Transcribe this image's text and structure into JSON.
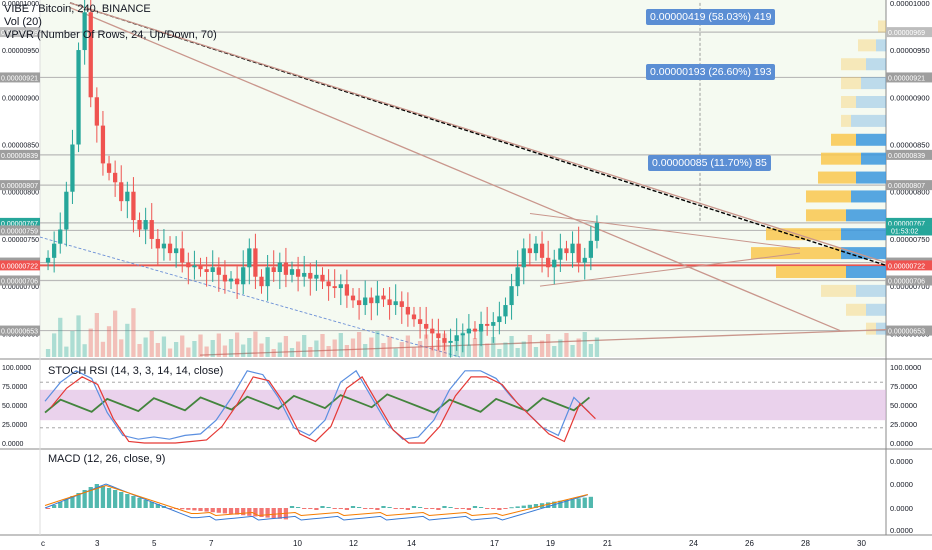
{
  "header": {
    "title": "VIBE / Bitcoin, 240, BINANCE",
    "vol_label": "Vol (20)",
    "vpvr_label": "VPVR (Number Of Rows, 24, Up/Down, 70)"
  },
  "measure_labels": [
    {
      "text": "0.00000419 (58.03%) 419",
      "price": 7.67e-06
    },
    {
      "text": "0.00000193 (26.60%) 193",
      "price": 9.21e-06
    },
    {
      "text": "0.00000085 (11.70%) 85",
      "price": 8.39e-06
    }
  ],
  "countdown": "01:53:02",
  "colors": {
    "up": "#26a69a",
    "down": "#ef5350",
    "stoch_k": "#5b8fe0",
    "stoch_d": "#e53935",
    "stoch_rsi": "#43843d",
    "macd": "#3a7bd5",
    "signal": "#f57c00",
    "bg_green": "#e8f5e1",
    "vp_up": "#f9c74f",
    "vp_down": "#3a96dd"
  },
  "chart_data": {
    "type": "candlestick",
    "title": "VIBE / Bitcoin, 240, BINANCE",
    "x_ticks": [
      "c",
      "3",
      "5",
      "7",
      "10",
      "12",
      "14",
      "17",
      "19",
      "21",
      "24",
      "26",
      "28",
      "30"
    ],
    "y_ticks": [
      "0.00001000",
      "0.00000950",
      "0.00000900",
      "0.00000850",
      "0.00000800",
      "0.00000750",
      "0.00000700",
      "0.00000650"
    ],
    "ylim": [
      6.25e-06,
      1.003e-05
    ],
    "price_badges": [
      {
        "value": "0.00000969",
        "color": "#bdbdbd"
      },
      {
        "value": "0.00000921",
        "color": "#9e9e9e"
      },
      {
        "value": "0.00000839",
        "color": "#9e9e9e"
      },
      {
        "value": "0.00000807",
        "color": "#9e9e9e"
      },
      {
        "value": "0.00000767",
        "color": "#26a69a"
      },
      {
        "value": "0.00000759",
        "color": "#9e9e9e"
      },
      {
        "value": "0.00000725",
        "color": "#9e9e9e"
      },
      {
        "value": "0.00000722",
        "color": "#ef5350"
      },
      {
        "value": "0.00000706",
        "color": "#9e9e9e"
      },
      {
        "value": "0.00000653",
        "color": "#9e9e9e"
      }
    ],
    "candles_close": [
      7.3e-06,
      7.45e-06,
      7.6e-06,
      8e-06,
      8.5e-06,
      9.5e-06,
      9.9e-06,
      9e-06,
      8.7e-06,
      8.3e-06,
      8.2e-06,
      8.1e-06,
      7.9e-06,
      8e-06,
      7.7e-06,
      7.6e-06,
      7.7e-06,
      7.5e-06,
      7.4e-06,
      7.45e-06,
      7.35e-06,
      7.4e-06,
      7.25e-06,
      7.2e-06,
      7.22e-06,
      7.18e-06,
      7.15e-06,
      7.2e-06,
      7.12e-06,
      7.05e-06,
      7.08e-06,
      7.02e-06,
      7.2e-06,
      7.4e-06,
      7.1e-06,
      7e-06,
      7.2e-06,
      7.15e-06,
      7.25e-06,
      7.12e-06,
      7.18e-06,
      7.1e-06,
      7.14e-06,
      7.08e-06,
      7.12e-06,
      7.05e-06,
      7e-06,
      6.98e-06,
      7.02e-06,
      6.9e-06,
      6.85e-06,
      6.8e-06,
      6.88e-06,
      6.82e-06,
      6.9e-06,
      6.86e-06,
      6.8e-06,
      6.84e-06,
      6.78e-06,
      6.7e-06,
      6.65e-06,
      6.6e-06,
      6.55e-06,
      6.5e-06,
      6.45e-06,
      6.4e-06,
      6.42e-06,
      6.48e-06,
      6.5e-06,
      6.55e-06,
      6.52e-06,
      6.6e-06,
      6.58e-06,
      6.62e-06,
      6.68e-06,
      6.8e-06,
      7e-06,
      7.2e-06,
      7.4e-06,
      7.35e-06,
      7.45e-06,
      7.3e-06,
      7.2e-06,
      7.28e-06,
      7.4e-06,
      7.35e-06,
      7.45e-06,
      7.25e-06,
      7.3e-06,
      7.48e-06,
      7.67e-06
    ],
    "stoch_rsi": {
      "label": "STOCH RSI (14, 3, 3, 14, 14, close)",
      "yticks": [
        "100.0000",
        "75.0000",
        "50.0000",
        "25.0000",
        "0.0000"
      ],
      "bands": [
        80,
        20
      ],
      "fill": [
        70,
        30
      ]
    },
    "macd": {
      "label": "MACD (12, 26, close, 9)",
      "yticks": [
        "0.0000",
        "0.0000",
        "0.0000",
        "0.0000"
      ]
    }
  }
}
